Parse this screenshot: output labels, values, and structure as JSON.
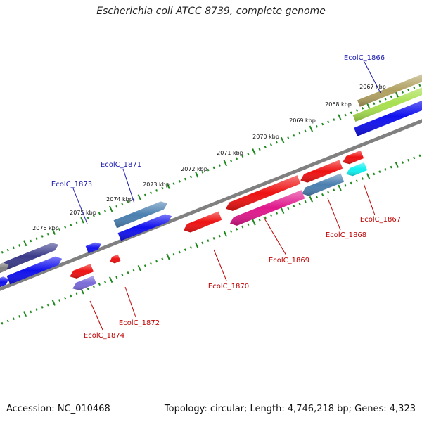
{
  "header": {
    "title": "Escherichia coli ATCC 8739, complete genome"
  },
  "footer": {
    "accession": "Accession: NC_010468",
    "summary": "Topology: circular; Length: 4,746,218 bp; Genes: 4,323"
  },
  "colors": {
    "backbone": "#808080",
    "tick": "#1e8a1e",
    "forward_label": "#1a1ab0",
    "reverse_label": "#c00000",
    "red": "#ee1111",
    "blue": "#1010ee",
    "steel": "#4a7fb0",
    "navy": "#3a3a8a",
    "pink": "#e0188c",
    "cyan": "#10f0f0",
    "olive": "#b0a060",
    "lime": "#a8e050",
    "lavender": "#7a6ad8"
  },
  "map": {
    "kbp_ticks": [
      "2067 kbp",
      "2068 kbp",
      "2069 kbp",
      "2070 kbp",
      "2071 kbp",
      "2072 kbp",
      "2073 kbp",
      "2074 kbp",
      "2075 kbp",
      "2076 kbp"
    ],
    "gene_labels": [
      {
        "text": "EcolC_1866",
        "strand": "forward"
      },
      {
        "text": "EcolC_1871",
        "strand": "forward"
      },
      {
        "text": "EcolC_1873",
        "strand": "forward"
      },
      {
        "text": "EcolC_1867",
        "strand": "reverse"
      },
      {
        "text": "EcolC_1868",
        "strand": "reverse"
      },
      {
        "text": "EcolC_1869",
        "strand": "reverse"
      },
      {
        "text": "EcolC_1870",
        "strand": "reverse"
      },
      {
        "text": "EcolC_1872",
        "strand": "reverse"
      },
      {
        "text": "EcolC_1874",
        "strand": "reverse"
      }
    ]
  }
}
